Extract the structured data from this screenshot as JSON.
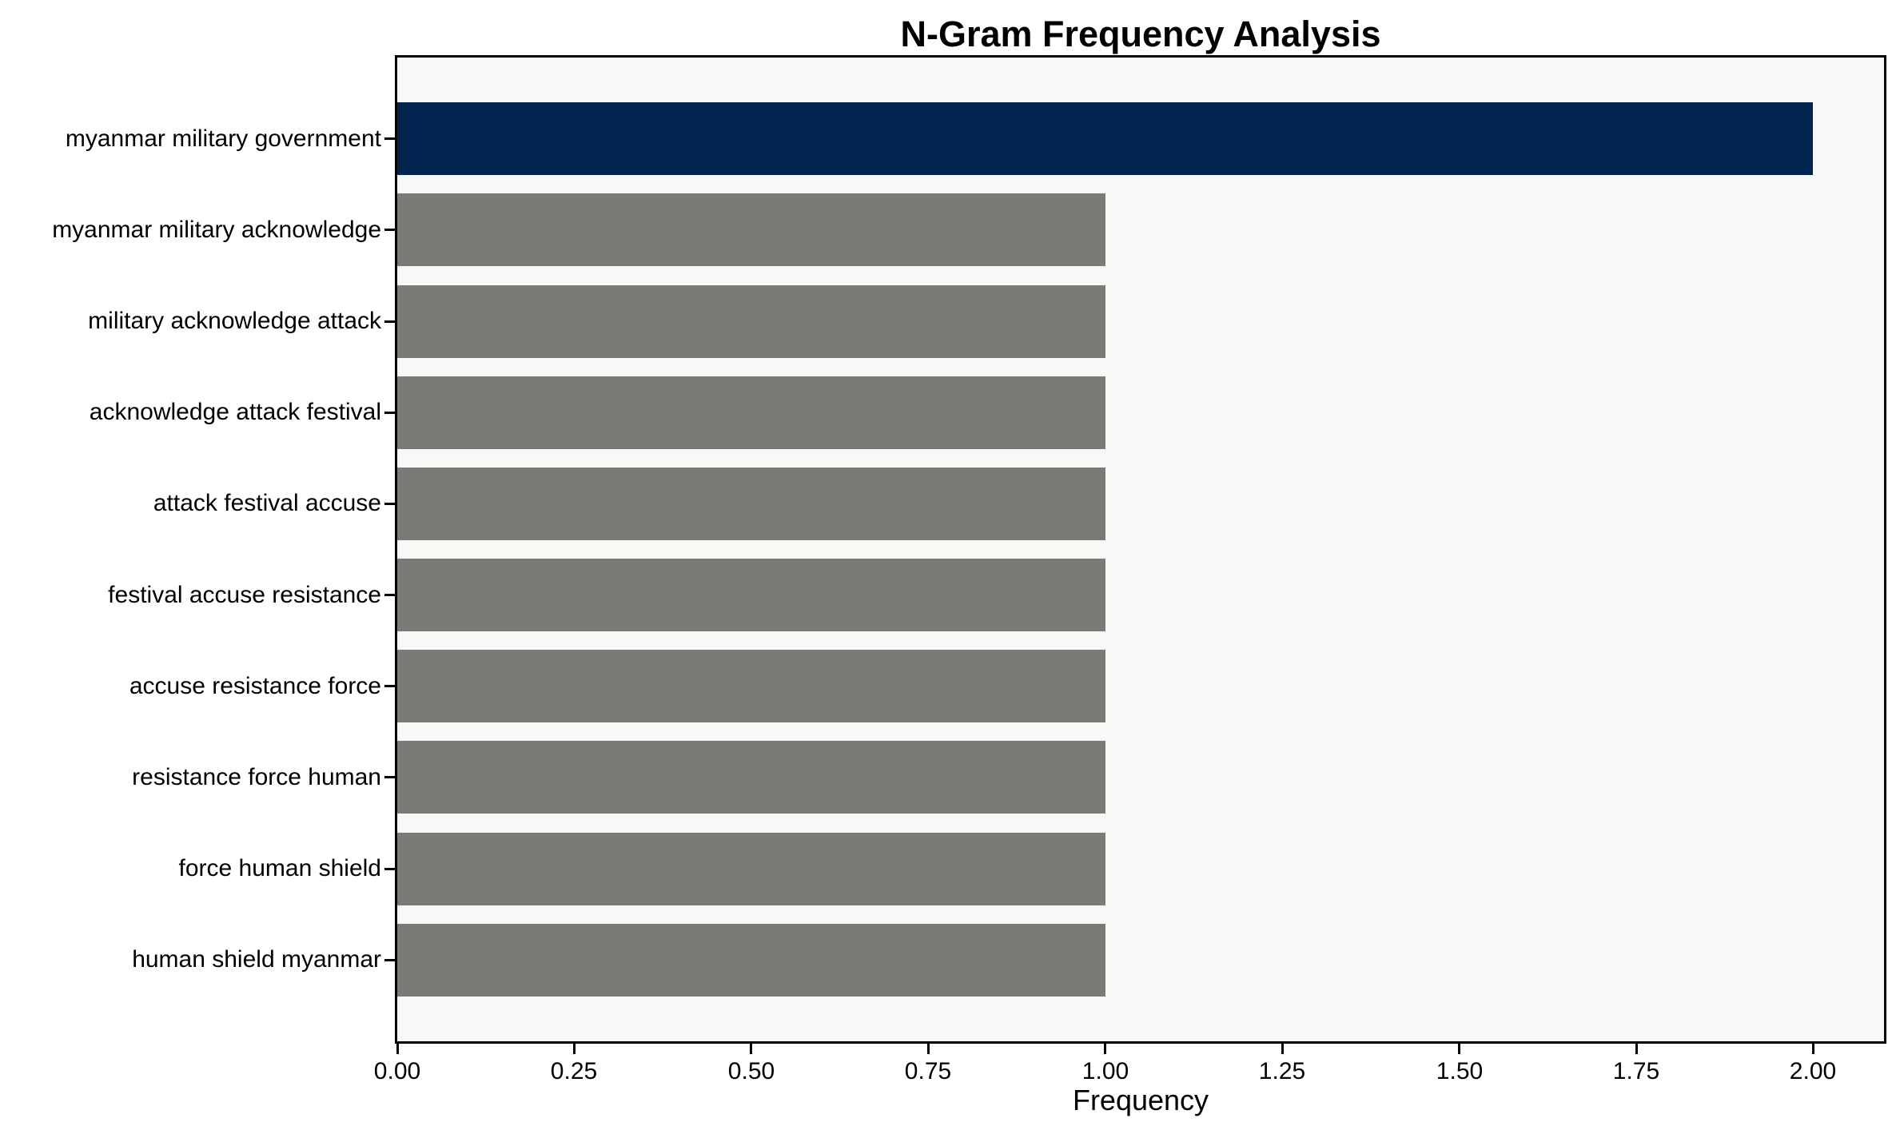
{
  "chart_data": {
    "type": "bar",
    "orientation": "horizontal",
    "title": "N-Gram Frequency Analysis",
    "xlabel": "Frequency",
    "ylabel": "",
    "categories": [
      "myanmar military government",
      "myanmar military acknowledge",
      "military acknowledge attack",
      "acknowledge attack festival",
      "attack festival accuse",
      "festival accuse resistance",
      "accuse resistance force",
      "resistance force human",
      "force human shield",
      "human shield myanmar"
    ],
    "values": [
      2,
      1,
      1,
      1,
      1,
      1,
      1,
      1,
      1,
      1
    ],
    "bar_colors": [
      "#01254e",
      "#7a7a77",
      "#7a7a77",
      "#7a7a77",
      "#7a7a77",
      "#7a7a77",
      "#7a7a77",
      "#7a7a77",
      "#7a7a77",
      "#7a7a77"
    ],
    "xlim": [
      0,
      2.1
    ],
    "x_ticks": [
      0.0,
      0.25,
      0.5,
      0.75,
      1.0,
      1.25,
      1.5,
      1.75,
      2.0
    ],
    "x_tick_labels": [
      "0.00",
      "0.25",
      "0.50",
      "0.75",
      "1.00",
      "1.25",
      "1.50",
      "1.75",
      "2.00"
    ],
    "grid": false,
    "legend": null,
    "colors": {
      "highlight_bar": "#01254e",
      "default_bar": "#7a7a77",
      "plot_background": "#f8f8f7",
      "figure_background": "#ffffff",
      "axis": "#000000",
      "text": "#000000"
    }
  }
}
